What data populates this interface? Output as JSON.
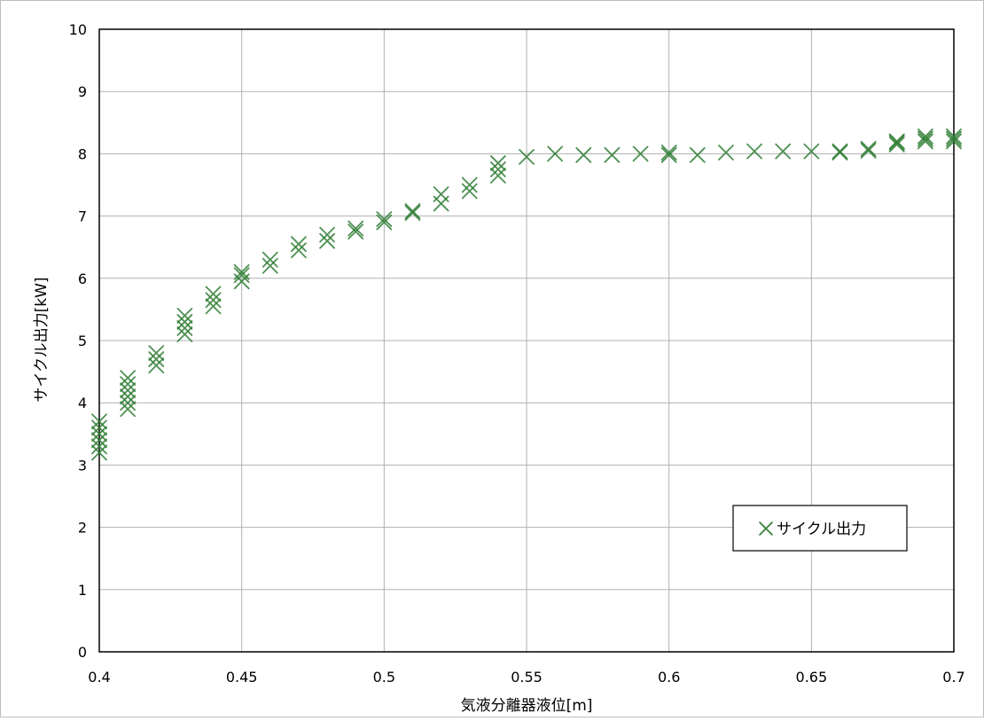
{
  "chart_data": {
    "type": "scatter",
    "title": "",
    "xlabel": "気液分離器液位[m]",
    "ylabel": "サイクル出力[kW]",
    "xlim": [
      0.4,
      0.7
    ],
    "ylim": [
      0,
      10
    ],
    "x_ticks": [
      "0.4",
      "0.45",
      "0.5",
      "0.55",
      "0.6",
      "0.65",
      "0.7"
    ],
    "y_ticks": [
      "0",
      "1",
      "2",
      "3",
      "4",
      "5",
      "6",
      "7",
      "8",
      "9",
      "10"
    ],
    "grid": true,
    "legend": {
      "position": "bottom-right",
      "entries": [
        "サイクル出力"
      ]
    },
    "series": [
      {
        "name": "サイクル出力",
        "marker": "x",
        "color": "#2e7d32",
        "points": [
          [
            0.4,
            3.2
          ],
          [
            0.4,
            3.3
          ],
          [
            0.4,
            3.4
          ],
          [
            0.4,
            3.5
          ],
          [
            0.4,
            3.6
          ],
          [
            0.4,
            3.7
          ],
          [
            0.41,
            3.9
          ],
          [
            0.41,
            4.0
          ],
          [
            0.41,
            4.1
          ],
          [
            0.41,
            4.2
          ],
          [
            0.41,
            4.3
          ],
          [
            0.41,
            4.4
          ],
          [
            0.42,
            4.6
          ],
          [
            0.42,
            4.7
          ],
          [
            0.42,
            4.8
          ],
          [
            0.43,
            5.1
          ],
          [
            0.43,
            5.2
          ],
          [
            0.43,
            5.3
          ],
          [
            0.43,
            5.4
          ],
          [
            0.44,
            5.55
          ],
          [
            0.44,
            5.65
          ],
          [
            0.44,
            5.75
          ],
          [
            0.45,
            5.95
          ],
          [
            0.45,
            6.05
          ],
          [
            0.45,
            6.1
          ],
          [
            0.46,
            6.2
          ],
          [
            0.46,
            6.3
          ],
          [
            0.47,
            6.45
          ],
          [
            0.47,
            6.55
          ],
          [
            0.48,
            6.6
          ],
          [
            0.48,
            6.7
          ],
          [
            0.49,
            6.75
          ],
          [
            0.49,
            6.8
          ],
          [
            0.5,
            6.9
          ],
          [
            0.5,
            6.95
          ],
          [
            0.51,
            7.05
          ],
          [
            0.51,
            7.08
          ],
          [
            0.52,
            7.2
          ],
          [
            0.52,
            7.35
          ],
          [
            0.53,
            7.4
          ],
          [
            0.53,
            7.5
          ],
          [
            0.54,
            7.65
          ],
          [
            0.54,
            7.75
          ],
          [
            0.54,
            7.85
          ],
          [
            0.55,
            7.95
          ],
          [
            0.56,
            8.0
          ],
          [
            0.57,
            7.98
          ],
          [
            0.58,
            7.98
          ],
          [
            0.59,
            8.0
          ],
          [
            0.6,
            7.98
          ],
          [
            0.6,
            8.02
          ],
          [
            0.61,
            7.98
          ],
          [
            0.62,
            8.02
          ],
          [
            0.63,
            8.04
          ],
          [
            0.64,
            8.04
          ],
          [
            0.65,
            8.04
          ],
          [
            0.66,
            8.02
          ],
          [
            0.66,
            8.04
          ],
          [
            0.67,
            8.05
          ],
          [
            0.67,
            8.08
          ],
          [
            0.68,
            8.15
          ],
          [
            0.68,
            8.18
          ],
          [
            0.68,
            8.2
          ],
          [
            0.69,
            8.2
          ],
          [
            0.69,
            8.24
          ],
          [
            0.69,
            8.28
          ],
          [
            0.7,
            8.2
          ],
          [
            0.7,
            8.24
          ],
          [
            0.7,
            8.28
          ]
        ]
      }
    ]
  }
}
